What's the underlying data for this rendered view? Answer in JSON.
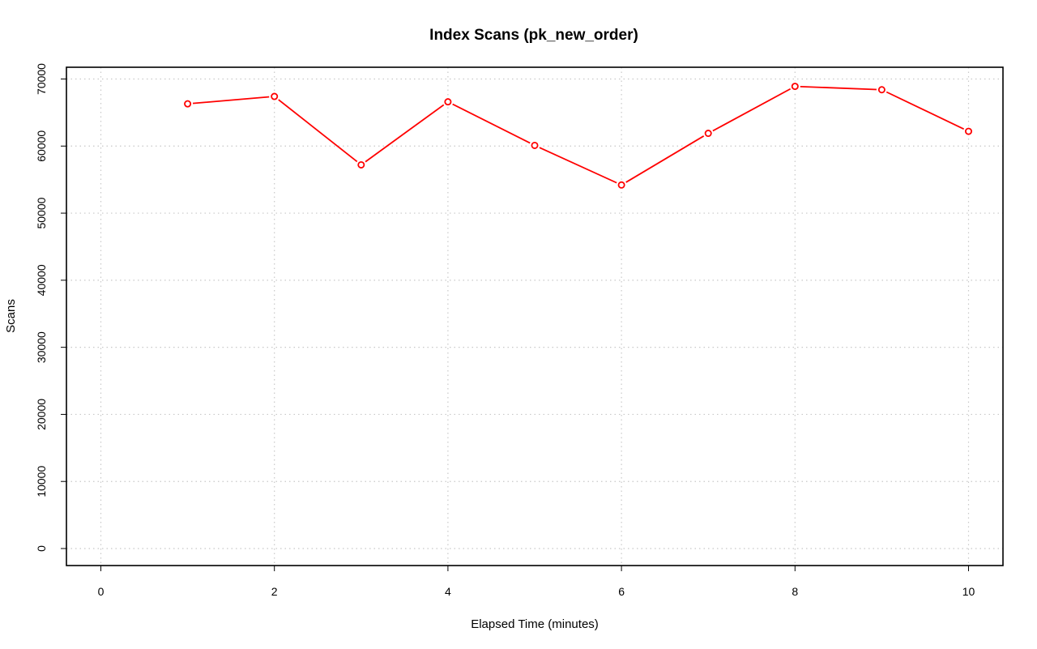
{
  "chart_data": {
    "type": "line",
    "title": "Index Scans (pk_new_order)",
    "xlabel": "Elapsed Time (minutes)",
    "ylabel": "Scans",
    "xlim": [
      0,
      10
    ],
    "ylim": [
      0,
      70000
    ],
    "x_ticks": [
      0,
      2,
      4,
      6,
      8,
      10
    ],
    "y_ticks": [
      0,
      10000,
      20000,
      30000,
      40000,
      50000,
      60000,
      70000
    ],
    "grid": true,
    "legend": "none",
    "series": [
      {
        "color": "#ff0000",
        "marker": "open-circle",
        "x": [
          1,
          2,
          3,
          4,
          5,
          6,
          7,
          8,
          9,
          10
        ],
        "y": [
          66300,
          67400,
          57200,
          66600,
          60100,
          54200,
          61900,
          68900,
          68400,
          62200
        ]
      }
    ]
  }
}
